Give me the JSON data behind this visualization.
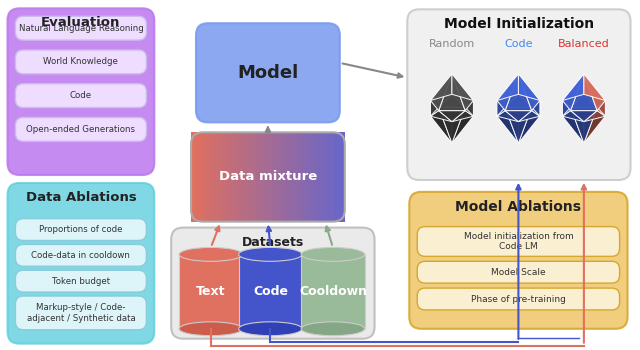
{
  "eval_items": [
    "Natural Language Reasoning",
    "World Knowledge",
    "Code",
    "Open-ended Generations"
  ],
  "data_abl_items": [
    "Proportions of code",
    "Code-data in cooldown",
    "Token budget",
    "Markup-style / Code-\nadjacent / Synthetic data"
  ],
  "model_abl_items": [
    "Model initialization from\nCode LM",
    "Model Scale",
    "Phase of pre-training"
  ],
  "init_labels": [
    "Random",
    "Code",
    "Balanced"
  ],
  "init_label_colors": [
    "#888888",
    "#4488ee",
    "#dd3333"
  ],
  "cylinder_labels": [
    "Text",
    "Code",
    "Cooldown"
  ],
  "cylinder_colors": [
    "#e07060",
    "#4455cc",
    "#99bb99"
  ],
  "eval_color": "#bb77ee",
  "eval_item_color": "#eeddff",
  "data_abl_color": "#55ccdd",
  "data_abl_item_color": "#ddf5f8",
  "model_color": "#7799ee",
  "model_init_color": "#f0f0f0",
  "model_abl_color": "#f0c870",
  "model_abl_item_color": "#faefd0",
  "datasets_color": "#e8e8e8",
  "grad_left": "#e07060",
  "grad_right": "#7777cc"
}
